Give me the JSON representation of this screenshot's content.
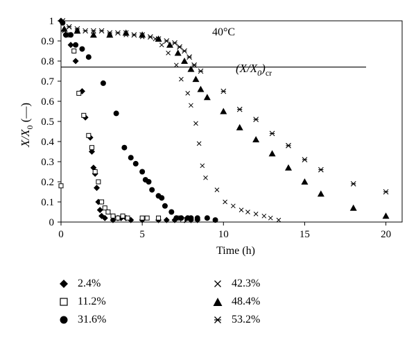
{
  "chart_data": {
    "type": "scatter",
    "annotation_temp": "40°C",
    "critical_label_main": "(X/X",
    "critical_label_sub0": "0",
    "critical_label_end": ")",
    "critical_label_sub_cr": "cr",
    "critical_value": 0.77,
    "xlabel": "Time (h)",
    "ylabel_main": "X/X",
    "ylabel_sub": "0",
    "ylabel_unit": " (—)",
    "xlim": [
      0,
      21
    ],
    "ylim": [
      0,
      1
    ],
    "xticks": [
      "0",
      "5",
      "10",
      "15",
      "20"
    ],
    "xtick_values": [
      0,
      5,
      10,
      15,
      20
    ],
    "yticks": [
      "0",
      "0.1",
      "0.2",
      "0.3",
      "0.4",
      "0.5",
      "0.6",
      "0.7",
      "0.8",
      "0.9",
      "1"
    ],
    "ytick_values": [
      0,
      0.1,
      0.2,
      0.3,
      0.4,
      0.5,
      0.6,
      0.7,
      0.8,
      0.9,
      1
    ],
    "grid": false,
    "legend_position": "bottom",
    "series": [
      {
        "name": "2.4%",
        "marker": "diamond",
        "points": [
          [
            0,
            1
          ],
          [
            0.3,
            0.93
          ],
          [
            0.6,
            0.88
          ],
          [
            0.9,
            0.8
          ],
          [
            1.3,
            0.65
          ],
          [
            1.5,
            0.52
          ],
          [
            1.8,
            0.42
          ],
          [
            1.9,
            0.35
          ],
          [
            2,
            0.27
          ],
          [
            2.1,
            0.24
          ],
          [
            2.2,
            0.17
          ],
          [
            2.3,
            0.1
          ],
          [
            2.4,
            0.06
          ],
          [
            2.5,
            0.03
          ],
          [
            2.7,
            0.02
          ],
          [
            3.2,
            0.01
          ],
          [
            3.5,
            0.02
          ],
          [
            3.7,
            0.02
          ],
          [
            4,
            0.02
          ],
          [
            4.3,
            0.01
          ],
          [
            5,
            0.01
          ],
          [
            6,
            0.01
          ],
          [
            6.5,
            0.01
          ],
          [
            7,
            0.01
          ],
          [
            7.6,
            0.01
          ],
          [
            8,
            0.01
          ],
          [
            8.4,
            0.01
          ]
        ]
      },
      {
        "name": "11.2%",
        "marker": "square",
        "points": [
          [
            0,
            0.18
          ],
          [
            0.4,
            0.93
          ],
          [
            0.8,
            0.85
          ],
          [
            1.1,
            0.64
          ],
          [
            1.4,
            0.53
          ],
          [
            1.7,
            0.43
          ],
          [
            1.9,
            0.37
          ],
          [
            2.1,
            0.25
          ],
          [
            2.3,
            0.2
          ],
          [
            2.5,
            0.1
          ],
          [
            2.7,
            0.07
          ],
          [
            2.9,
            0.05
          ],
          [
            3.2,
            0.03
          ],
          [
            3.5,
            0.02
          ],
          [
            3.8,
            0.03
          ],
          [
            4.1,
            0.02
          ],
          [
            5,
            0.02
          ],
          [
            5.3,
            0.02
          ],
          [
            6,
            0.02
          ],
          [
            7.2,
            0.02
          ],
          [
            7.5,
            0.01
          ]
        ]
      },
      {
        "name": "31.6%",
        "marker": "circle",
        "points": [
          [
            0.1,
            0.99
          ],
          [
            0.3,
            0.93
          ],
          [
            0.6,
            0.93
          ],
          [
            0.9,
            0.88
          ],
          [
            1.3,
            0.86
          ],
          [
            1.7,
            0.82
          ],
          [
            2.6,
            0.69
          ],
          [
            3.4,
            0.54
          ],
          [
            3.9,
            0.37
          ],
          [
            4.3,
            0.32
          ],
          [
            4.6,
            0.29
          ],
          [
            5,
            0.25
          ],
          [
            5.2,
            0.21
          ],
          [
            5.4,
            0.2
          ],
          [
            5.6,
            0.16
          ],
          [
            6,
            0.13
          ],
          [
            6.2,
            0.12
          ],
          [
            6.4,
            0.08
          ],
          [
            6.8,
            0.05
          ],
          [
            7.1,
            0.02
          ],
          [
            7.4,
            0.02
          ],
          [
            7.8,
            0.02
          ],
          [
            8,
            0.02
          ],
          [
            8.4,
            0.02
          ],
          [
            9,
            0.02
          ],
          [
            9.5,
            0.01
          ]
        ]
      },
      {
        "name": "42.3%",
        "marker": "cross",
        "points": [
          [
            0.2,
            0.95
          ],
          [
            1,
            0.95
          ],
          [
            2,
            0.93
          ],
          [
            3,
            0.93
          ],
          [
            4,
            0.93
          ],
          [
            5,
            0.92
          ],
          [
            5.8,
            0.91
          ],
          [
            6.2,
            0.88
          ],
          [
            6.6,
            0.84
          ],
          [
            7.1,
            0.78
          ],
          [
            7.4,
            0.71
          ],
          [
            7.8,
            0.64
          ],
          [
            8,
            0.58
          ],
          [
            8.3,
            0.49
          ],
          [
            8.5,
            0.39
          ],
          [
            8.7,
            0.28
          ],
          [
            8.9,
            0.22
          ],
          [
            9.6,
            0.16
          ],
          [
            10.1,
            0.1
          ],
          [
            10.6,
            0.08
          ],
          [
            11.1,
            0.06
          ],
          [
            11.5,
            0.05
          ],
          [
            12,
            0.04
          ],
          [
            12.5,
            0.03
          ],
          [
            12.9,
            0.02
          ],
          [
            13.4,
            0.01
          ]
        ]
      },
      {
        "name": "48.4%",
        "marker": "triangle",
        "points": [
          [
            0.2,
            0.96
          ],
          [
            1,
            0.95
          ],
          [
            2,
            0.93
          ],
          [
            3,
            0.93
          ],
          [
            4,
            0.94
          ],
          [
            5,
            0.93
          ],
          [
            6,
            0.91
          ],
          [
            6.7,
            0.88
          ],
          [
            7.2,
            0.84
          ],
          [
            7.6,
            0.8
          ],
          [
            8,
            0.76
          ],
          [
            8.3,
            0.71
          ],
          [
            8.6,
            0.66
          ],
          [
            9,
            0.62
          ],
          [
            10,
            0.55
          ],
          [
            11,
            0.47
          ],
          [
            12,
            0.41
          ],
          [
            13,
            0.34
          ],
          [
            14,
            0.27
          ],
          [
            15,
            0.2
          ],
          [
            16,
            0.14
          ],
          [
            18,
            0.07
          ],
          [
            20,
            0.03
          ]
        ]
      },
      {
        "name": "53.2%",
        "marker": "asterisk",
        "points": [
          [
            0.1,
            1
          ],
          [
            0.5,
            0.97
          ],
          [
            1,
            0.96
          ],
          [
            1.5,
            0.95
          ],
          [
            2,
            0.95
          ],
          [
            2.5,
            0.95
          ],
          [
            3,
            0.94
          ],
          [
            3.5,
            0.94
          ],
          [
            4,
            0.94
          ],
          [
            4.5,
            0.93
          ],
          [
            5,
            0.93
          ],
          [
            5.5,
            0.92
          ],
          [
            6,
            0.91
          ],
          [
            6.5,
            0.9
          ],
          [
            7,
            0.89
          ],
          [
            7.3,
            0.87
          ],
          [
            7.6,
            0.85
          ],
          [
            7.9,
            0.82
          ],
          [
            8.2,
            0.78
          ],
          [
            8.6,
            0.75
          ],
          [
            10,
            0.65
          ],
          [
            11,
            0.56
          ],
          [
            12,
            0.51
          ],
          [
            13,
            0.44
          ],
          [
            14,
            0.38
          ],
          [
            15,
            0.31
          ],
          [
            16,
            0.26
          ],
          [
            18,
            0.19
          ],
          [
            20,
            0.15
          ]
        ]
      }
    ]
  }
}
